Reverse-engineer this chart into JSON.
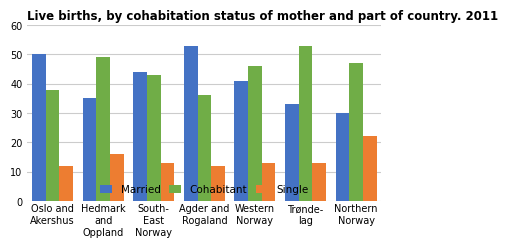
{
  "title": "Live births, by cohabitation status of mother and part of country. 2011",
  "categories": [
    "Oslo and\nAkershus",
    "Hedmark\nand\nOppland",
    "South-\nEast\nNorway",
    "Agder and\nRogaland",
    "Western\nNorway",
    "Trønde-\nlag",
    "Northern\nNorway"
  ],
  "series": {
    "Married": [
      50,
      35,
      44,
      53,
      41,
      33,
      30
    ],
    "Cohabitant": [
      38,
      49,
      43,
      36,
      46,
      53,
      47
    ],
    "Single": [
      12,
      16,
      13,
      12,
      13,
      13,
      22
    ]
  },
  "colors": {
    "Married": "#4472C4",
    "Cohabitant": "#70AD47",
    "Single": "#ED7D31"
  },
  "ylim": [
    0,
    60
  ],
  "yticks": [
    0,
    10,
    20,
    30,
    40,
    50,
    60
  ],
  "bar_width": 0.27,
  "title_fontsize": 8.5,
  "tick_fontsize": 7.0,
  "legend_fontsize": 7.5,
  "background_color": "#ffffff",
  "grid_color": "#cccccc"
}
